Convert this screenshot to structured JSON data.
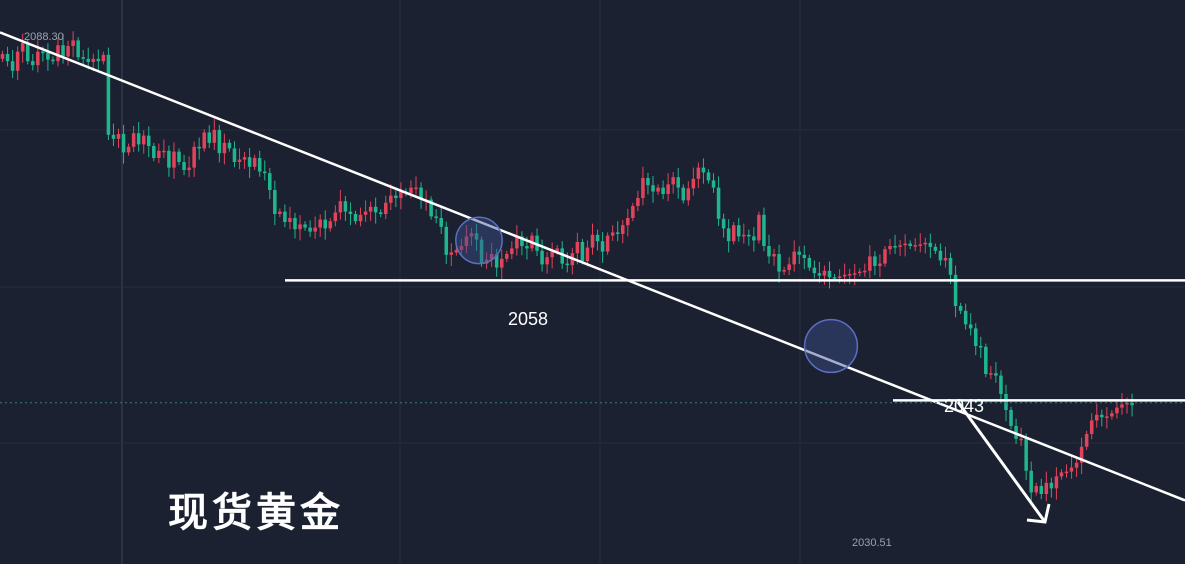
{
  "title": "现货黄金",
  "colors": {
    "background": "#1b2130",
    "grid": "#262e3f",
    "up": "#e0435a",
    "down": "#1fb58f",
    "annotation": "#ffffff",
    "highlight": "#3d4d8f"
  },
  "chart_data": {
    "type": "candlestick",
    "instrument": "现货黄金",
    "ylim": [
      2027,
      2091
    ],
    "high_label": "2088.30",
    "low_label": "2030.51",
    "levels": [
      {
        "label": "2058",
        "value": 2058
      },
      {
        "label": "2043",
        "value": 2043
      }
    ],
    "trendline": {
      "from": [
        0,
        2089.0
      ],
      "to": [
        1185,
        2030.5
      ]
    },
    "highlight_circles": [
      {
        "center_price": 2063.0,
        "radius": 2.9
      },
      {
        "center_price": 2049.8,
        "radius": 3.3
      }
    ],
    "projection_arrow": {
      "from_price": 2042.8,
      "to_price": 2027.8
    },
    "close": [
      2086.3,
      2085.4,
      2084.2,
      2086.6,
      2087.7,
      2085.4,
      2084.9,
      2086.6,
      2086.5,
      2085.6,
      2085.4,
      2087.4,
      2086.0,
      2087.3,
      2088.0,
      2085.9,
      2085.7,
      2085.3,
      2085.7,
      2085.4,
      2086.2,
      2076.2,
      2075.7,
      2076.3,
      2074.0,
      2074.7,
      2076.4,
      2075.0,
      2076.1,
      2074.8,
      2073.3,
      2074.2,
      2074.2,
      2072.1,
      2074.1,
      2072.8,
      2071.8,
      2072.1,
      2074.7,
      2074.5,
      2076.5,
      2075.2,
      2076.8,
      2073.9,
      2075.2,
      2074.5,
      2072.8,
      2073.1,
      2073.4,
      2072.2,
      2073.3,
      2071.6,
      2071.4,
      2069.3,
      2066.3,
      2066.6,
      2065.3,
      2065.8,
      2064.4,
      2065.0,
      2064.6,
      2064.1,
      2064.6,
      2065.6,
      2064.5,
      2065.4,
      2066.5,
      2067.9,
      2066.6,
      2066.3,
      2065.4,
      2066.2,
      2066.6,
      2067.2,
      2066.5,
      2066.3,
      2067.7,
      2068.6,
      2068.3,
      2069.1,
      2068.9,
      2069.6,
      2069.6,
      2068.1,
      2068.1,
      2066.0,
      2065.8,
      2064.7,
      2061.2,
      2061.5,
      2061.8,
      2062.3,
      2063.5,
      2063.9,
      2063.1,
      2060.1,
      2060.6,
      2061.3,
      2059.6,
      2060.7,
      2061.3,
      2062.0,
      2063.5,
      2062.3,
      2062.0,
      2063.6,
      2061.7,
      2060.0,
      2060.9,
      2061.6,
      2062.0,
      2060.1,
      2059.9,
      2061.4,
      2062.8,
      2060.4,
      2062.1,
      2063.7,
      2062.9,
      2061.6,
      2063.6,
      2064.0,
      2063.8,
      2064.9,
      2065.8,
      2067.3,
      2068.3,
      2070.8,
      2069.9,
      2069.1,
      2069.6,
      2068.8,
      2070.0,
      2070.9,
      2069.6,
      2068.0,
      2069.5,
      2070.7,
      2072.1,
      2071.5,
      2070.5,
      2069.6,
      2065.7,
      2064.5,
      2062.9,
      2064.9,
      2063.5,
      2063.7,
      2063.5,
      2063.0,
      2066.2,
      2062.3,
      2061.0,
      2061.3,
      2059.1,
      2059.3,
      2060.0,
      2061.6,
      2061.2,
      2060.8,
      2059.6,
      2058.9,
      2058.6,
      2059.2,
      2058.4,
      2058.3,
      2058.5,
      2058.7,
      2058.8,
      2058.9,
      2059.1,
      2059.2,
      2061.0,
      2059.8,
      2060.1,
      2061.9,
      2062.3,
      2062.2,
      2062.4,
      2062.6,
      2062.3,
      2062.4,
      2062.5,
      2062.7,
      2062.2,
      2061.7,
      2060.5,
      2060.8,
      2058.7,
      2054.8,
      2054.2,
      2052.5,
      2052.0,
      2049.8,
      2049.7,
      2046.3,
      2046.4,
      2046.1,
      2043.8,
      2041.8,
      2039.8,
      2038.2,
      2038.2,
      2034.2,
      2031.5,
      2032.3,
      2031.3,
      2032.7,
      2032.0,
      2033.5,
      2034.0,
      2034.1,
      2034.6,
      2035.2,
      2037.2,
      2038.8,
      2040.5,
      2041.2,
      2040.9,
      2041.0,
      2041.4,
      2042.1,
      2042.5,
      2042.7,
      2042.4
    ]
  }
}
